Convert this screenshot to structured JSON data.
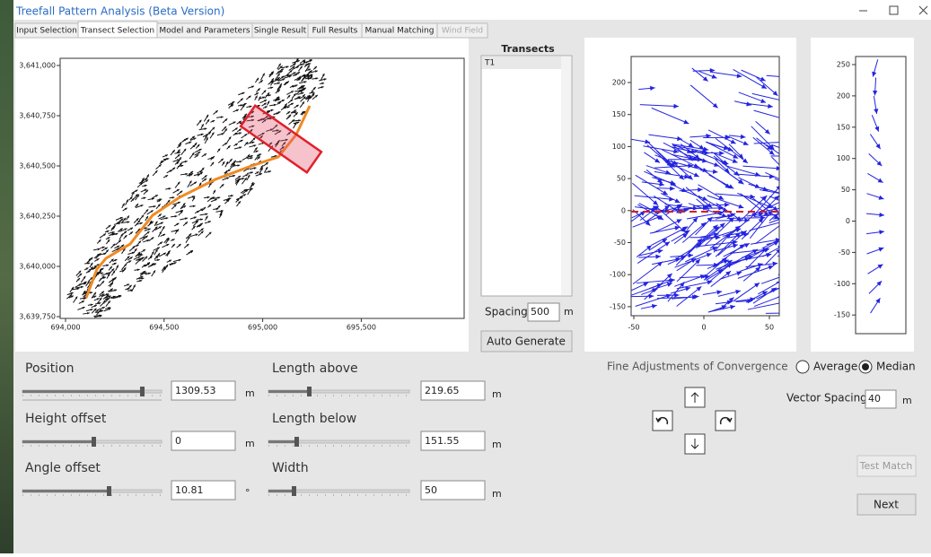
{
  "window": {
    "title": "Treefall Pattern Analysis (Beta Version)"
  },
  "tabs": [
    "Input Selection",
    "Transect Selection",
    "Model and Parameters",
    "Single Result",
    "Full Results",
    "Manual Matching",
    "Wind Field"
  ],
  "map_plot": {
    "yticks": [
      "3,641,000",
      "3,640,750",
      "3,640,500",
      "3,640,250",
      "3,640,000",
      "3,639,750"
    ],
    "xticks": [
      "694,000",
      "694,500",
      "695,000",
      "695,500"
    ]
  },
  "transects": {
    "title": "Transects",
    "items": [
      "T1"
    ],
    "spacing_label": "Spacing",
    "spacing": "500",
    "spacing_unit": "m",
    "button": "Auto Generate"
  },
  "profile_plot": {
    "yticks": [
      "200",
      "150",
      "100",
      "50",
      "0",
      "-50",
      "-100",
      "-150"
    ],
    "xticks": [
      "-50",
      "0",
      "50"
    ]
  },
  "vector_plot": {
    "yticks": [
      "250",
      "200",
      "150",
      "100",
      "50",
      "0",
      "-50",
      "-100",
      "-150"
    ]
  },
  "parameters": [
    {
      "label": "Position",
      "value": "1309.53",
      "unit": "m"
    },
    {
      "label": "Height offset",
      "value": "0",
      "unit": "m"
    },
    {
      "label": "Angle offset",
      "value": "10.81",
      "unit": "°"
    },
    {
      "label": "Length above",
      "value": "219.65",
      "unit": "m"
    },
    {
      "label": "Length below",
      "value": "151.55",
      "unit": "m"
    },
    {
      "label": "Width",
      "value": "50",
      "unit": "m"
    }
  ],
  "convergence": {
    "title": "Fine Adjustments of Convergence",
    "options": [
      "Average",
      "Median"
    ],
    "vector_spacing_label": "Vector Spacing",
    "vector_spacing": "40",
    "vector_spacing_unit": "m"
  },
  "buttons": {
    "test_match": "Test Match",
    "next": "Next"
  }
}
